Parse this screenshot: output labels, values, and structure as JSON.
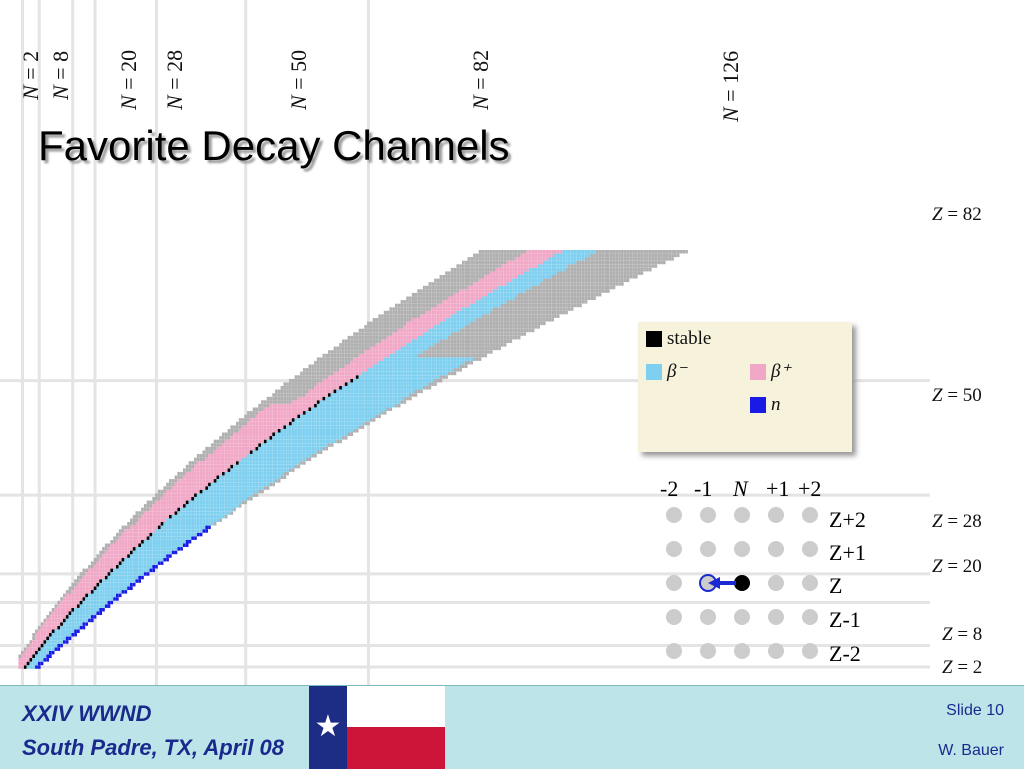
{
  "slide": {
    "title": "Favorite Decay Channels",
    "footer": {
      "conference": "XXIV WWND",
      "location": "South Padre, TX, April 08",
      "slide_number": "Slide 10",
      "author": "W. Bauer"
    }
  },
  "chart_data": {
    "type": "nuclide-chart",
    "title": "",
    "x_quantity": "N",
    "y_quantity": "Z",
    "neutron_magic_numbers": [
      2,
      8,
      20,
      28,
      50,
      82,
      126
    ],
    "proton_magic_numbers": [
      2,
      8,
      20,
      28,
      50,
      82
    ],
    "legend": [
      {
        "label": "stable",
        "color": "#000000"
      },
      {
        "label": "β⁻",
        "color": "#7fd0f0"
      },
      {
        "label": "β⁺",
        "color": "#f1a7c6"
      },
      {
        "label": "n",
        "color": "#1a1ae6"
      }
    ],
    "unknown_color": "#b0b0b0",
    "legend_placement": "right"
  },
  "inset": {
    "column_labels": [
      "-2",
      "-1",
      "N",
      "+1",
      "+2"
    ],
    "row_labels": [
      "Z+2",
      "Z+1",
      "Z",
      "Z-1",
      "Z-2"
    ],
    "arrow_from": "N",
    "arrow_to": "-1",
    "dot_color": "#cccccc",
    "arrow_color": "#1a2ad0"
  }
}
